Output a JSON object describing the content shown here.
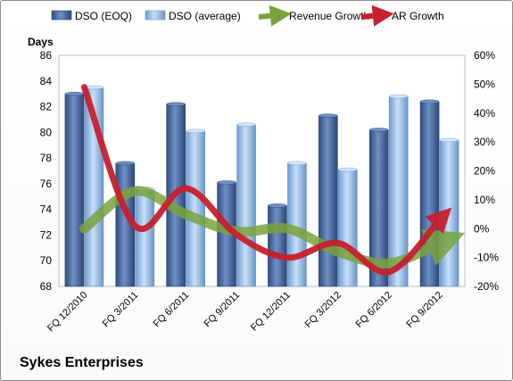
{
  "company_name": "Sykes Enterprises",
  "chart_data": {
    "type": "bar+line",
    "categories": [
      "FQ 12/2010",
      "FQ 3/2011",
      "FQ 6/2011",
      "FQ 9/2011",
      "FQ 12/2011",
      "FQ 3/2012",
      "FQ 6/2012",
      "FQ 9/2012"
    ],
    "ylabel": "Days",
    "left_axis": {
      "min": 68,
      "max": 86,
      "step": 2
    },
    "right_axis": {
      "min": -20,
      "max": 60,
      "step": 10,
      "suffix": "%"
    },
    "legend_position": "top",
    "grid": false,
    "series": [
      {
        "name": "DSO (EOQ)",
        "type": "bar",
        "axis": "left",
        "color": "#4f6fa6",
        "values": [
          83.0,
          77.6,
          82.2,
          76.1,
          74.3,
          81.3,
          80.2,
          82.4
        ]
      },
      {
        "name": "DSO (average)",
        "type": "bar",
        "axis": "left",
        "color": "#9fc4ea",
        "values": [
          83.5,
          75.6,
          80.1,
          80.6,
          77.6,
          77.1,
          82.8,
          79.4
        ]
      },
      {
        "name": "Revenue Growth",
        "type": "line",
        "axis": "right",
        "color": "#7aa33c",
        "values": [
          0,
          13,
          5,
          -1,
          0,
          -8,
          -12,
          -5
        ]
      },
      {
        "name": "AR Growth",
        "type": "line",
        "axis": "right",
        "color": "#c8202e",
        "values": [
          49,
          1,
          14,
          -2,
          -10,
          -5,
          -15,
          3
        ]
      }
    ]
  }
}
